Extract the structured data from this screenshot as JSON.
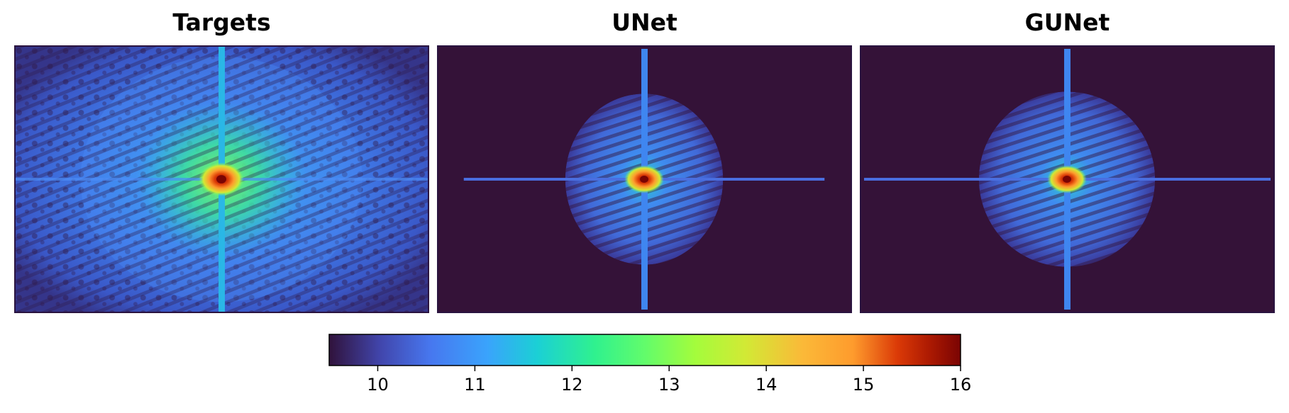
{
  "panels": [
    {
      "title": "Targets"
    },
    {
      "title": "UNet"
    },
    {
      "title": "GUNet"
    }
  ],
  "chart_data": [
    {
      "type": "heatmap",
      "title": "Targets",
      "description_shape": "2D spectrum with central peak, vertical and horizontal cross lines, broad diffuse halo filling frame",
      "zrange": [
        9.5,
        16
      ],
      "peak_value": 16,
      "background_value": 10.3,
      "halo_value": 11.3
    },
    {
      "type": "heatmap",
      "title": "UNet",
      "description_shape": "central peak with cross lines and a compact striped elliptical halo on flat dark background",
      "zrange": [
        9.5,
        16
      ],
      "peak_value": 16,
      "background_value": 9.5,
      "halo_value": 10.9
    },
    {
      "type": "heatmap",
      "title": "GUNet",
      "description_shape": "central peak with cross lines and a wider striped elliptical halo on flat dark background",
      "zrange": [
        9.5,
        16
      ],
      "peak_value": 16,
      "background_value": 9.5,
      "halo_value": 11.0
    }
  ],
  "colorbar": {
    "colormap": "turbo",
    "min": 9.5,
    "max": 16,
    "ticks": [
      10,
      11,
      12,
      13,
      14,
      15,
      16
    ],
    "tick_labels": [
      "10",
      "11",
      "12",
      "13",
      "14",
      "15",
      "16"
    ],
    "colors": [
      "#30123b",
      "#4777ef",
      "#1bd0d5",
      "#62fc6b",
      "#d2e935",
      "#fe9b2d",
      "#db3a07",
      "#7a0403"
    ]
  }
}
